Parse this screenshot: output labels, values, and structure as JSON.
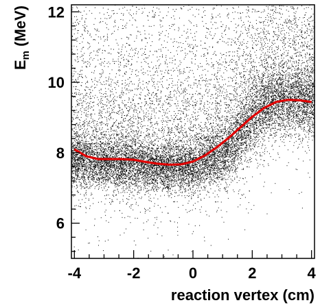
{
  "chart_data": {
    "type": "scatter",
    "title": "",
    "xlabel": "reaction vertex (cm)",
    "ylabel_main": "E",
    "ylabel_sub": "m",
    "ylabel_unit": " (MeV)",
    "xlim": [
      -4.1,
      4.1
    ],
    "ylim": [
      5.0,
      12.2
    ],
    "x_ticks": [
      -4,
      -2,
      0,
      2,
      4
    ],
    "x_tick_labels": [
      "-4",
      "-2",
      "0",
      "2",
      "4"
    ],
    "y_ticks": [
      6,
      8,
      10,
      12
    ],
    "y_tick_labels": [
      "6",
      "8",
      "10",
      "12"
    ],
    "grid": false,
    "legend": "none",
    "series": [
      {
        "kind": "fit-line",
        "color": "#e00000",
        "x": [
          -4.0,
          -3.6,
          -3.2,
          -2.8,
          -2.4,
          -2.0,
          -1.6,
          -1.2,
          -0.8,
          -0.4,
          0.0,
          0.4,
          0.8,
          1.2,
          1.6,
          2.0,
          2.4,
          2.8,
          3.2,
          3.6,
          4.0
        ],
        "y": [
          8.1,
          7.9,
          7.82,
          7.82,
          7.82,
          7.8,
          7.74,
          7.69,
          7.66,
          7.67,
          7.75,
          7.92,
          8.15,
          8.42,
          8.72,
          9.02,
          9.27,
          9.44,
          9.5,
          9.49,
          9.44
        ]
      },
      {
        "kind": "scatter-density",
        "color": "#000000",
        "center_x": [
          -4.0,
          -3.0,
          -2.0,
          -1.0,
          0.0,
          1.0,
          1.5,
          2.0,
          2.5,
          3.0,
          3.5,
          4.0
        ],
        "center_y": [
          7.8,
          7.7,
          7.65,
          7.55,
          7.6,
          7.95,
          8.4,
          8.95,
          9.35,
          9.5,
          9.45,
          9.4
        ],
        "spread_y": [
          0.4,
          0.35,
          0.35,
          0.3,
          0.35,
          0.4,
          0.45,
          0.5,
          0.5,
          0.45,
          0.45,
          0.45
        ]
      }
    ]
  },
  "colors": {
    "fit": "#e00000",
    "points": "#000000",
    "frame": "#000000"
  }
}
